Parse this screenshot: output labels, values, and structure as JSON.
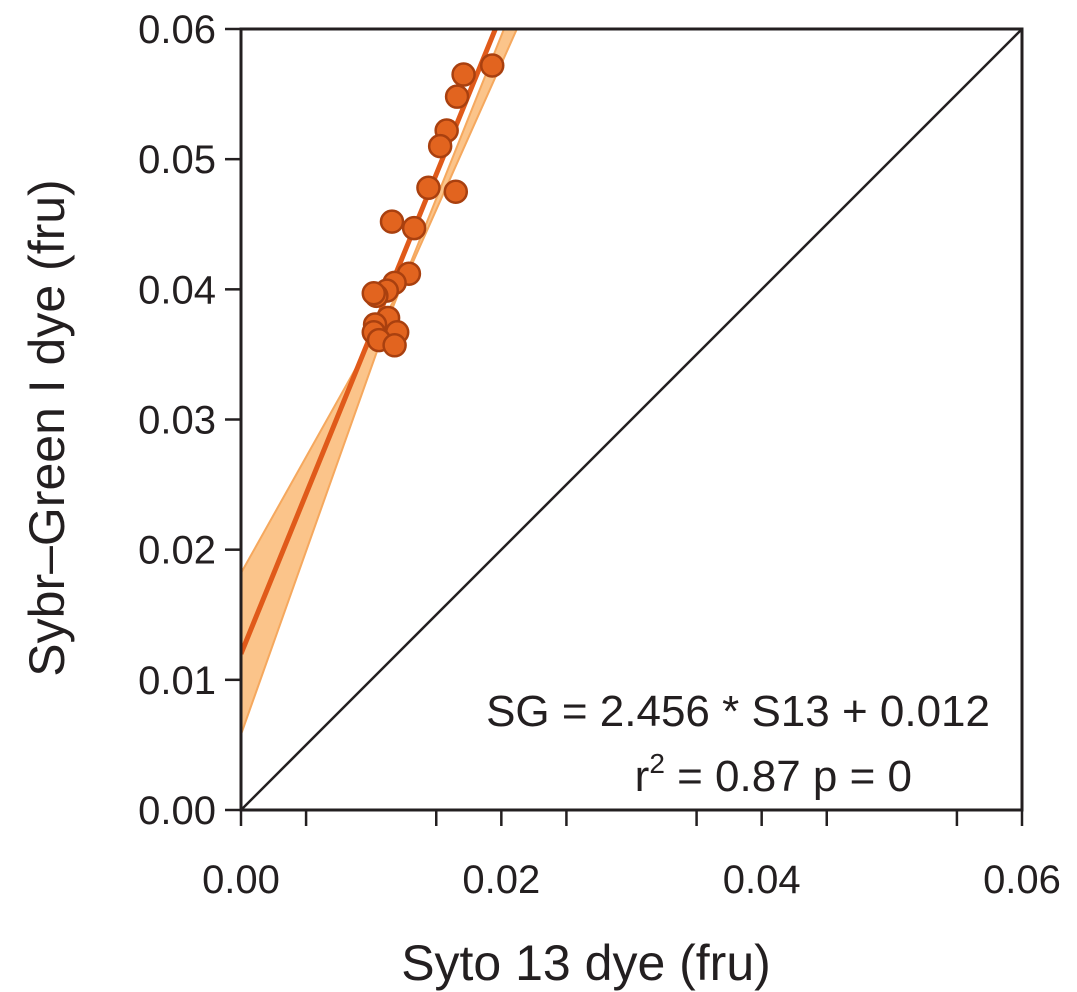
{
  "chart_data": {
    "type": "scatter",
    "xlabel": "Syto 13 dye (fru)",
    "ylabel": "Sybr–Green I dye (fru)",
    "xlim": [
      0,
      0.06
    ],
    "ylim": [
      0,
      0.06
    ],
    "x_ticks": [
      "0.00",
      "0.02",
      "0.04",
      "0.06"
    ],
    "y_ticks": [
      "0.00",
      "0.01",
      "0.02",
      "0.03",
      "0.04",
      "0.05",
      "0.06"
    ],
    "grid": false,
    "reference_line": {
      "slope": 1,
      "intercept": 0
    },
    "fit": {
      "slope": 2.456,
      "intercept": 0.012
    },
    "annotation": {
      "equation": "SG =  2.456 * S13 + 0.012",
      "r_prefix": "r",
      "r_exp": "2",
      "r_suffix": " = 0.87 p = 0"
    },
    "points": [
      {
        "x": 0.0193,
        "y": 0.0572
      },
      {
        "x": 0.0171,
        "y": 0.0565
      },
      {
        "x": 0.0166,
        "y": 0.0548
      },
      {
        "x": 0.0158,
        "y": 0.0522
      },
      {
        "x": 0.0153,
        "y": 0.051
      },
      {
        "x": 0.0144,
        "y": 0.0478
      },
      {
        "x": 0.0165,
        "y": 0.0475
      },
      {
        "x": 0.0116,
        "y": 0.0452
      },
      {
        "x": 0.0133,
        "y": 0.0447
      },
      {
        "x": 0.0129,
        "y": 0.0412
      },
      {
        "x": 0.0118,
        "y": 0.0405
      },
      {
        "x": 0.0112,
        "y": 0.0399
      },
      {
        "x": 0.0104,
        "y": 0.0395
      },
      {
        "x": 0.0102,
        "y": 0.0397
      },
      {
        "x": 0.0113,
        "y": 0.0378
      },
      {
        "x": 0.0103,
        "y": 0.0373
      },
      {
        "x": 0.012,
        "y": 0.0367
      },
      {
        "x": 0.0102,
        "y": 0.0367
      },
      {
        "x": 0.0106,
        "y": 0.0361
      },
      {
        "x": 0.0118,
        "y": 0.0357
      }
    ],
    "colors": {
      "point_fill": "#e2641f",
      "point_stroke": "#a9400f",
      "fit_line": "#e05a1a",
      "band_fill": "#fbc48a",
      "band_edge": "#f5a85e",
      "axis": "#231f20"
    }
  }
}
